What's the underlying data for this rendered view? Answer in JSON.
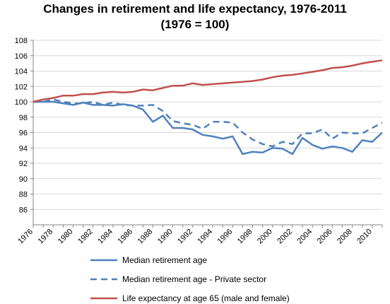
{
  "chart_data": {
    "type": "line",
    "title": "Changes in retirement and life expectancy, 1976-2011",
    "subtitle": "(1976 = 100)",
    "xlabel": "",
    "ylabel": "",
    "ylim": [
      84,
      108
    ],
    "yticks": [
      86,
      88,
      90,
      92,
      94,
      96,
      98,
      100,
      102,
      104,
      106,
      108
    ],
    "xlim": [
      1976,
      2011
    ],
    "xticks": [
      1976,
      1978,
      1980,
      1982,
      1984,
      1986,
      1988,
      1990,
      1992,
      1994,
      1996,
      1998,
      2000,
      2002,
      2004,
      2006,
      2008,
      2010
    ],
    "grid": "horizontal",
    "legend": "bottom",
    "x": [
      1976,
      1977,
      1978,
      1979,
      1980,
      1981,
      1982,
      1983,
      1984,
      1985,
      1986,
      1987,
      1988,
      1989,
      1990,
      1991,
      1992,
      1993,
      1994,
      1995,
      1996,
      1997,
      1998,
      1999,
      2000,
      2001,
      2002,
      2003,
      2004,
      2005,
      2006,
      2007,
      2008,
      2009,
      2010,
      2011
    ],
    "series": [
      {
        "name": "Median retirement age",
        "color": "#4f81bd",
        "style": "solid",
        "values": [
          100.0,
          100.0,
          100.0,
          99.8,
          99.6,
          99.9,
          99.6,
          99.6,
          99.5,
          99.7,
          99.5,
          99.0,
          97.4,
          98.2,
          96.6,
          96.6,
          96.4,
          95.7,
          95.5,
          95.2,
          95.5,
          93.2,
          93.5,
          93.4,
          94.0,
          93.9,
          93.2,
          95.3,
          94.4,
          93.9,
          94.2,
          94.0,
          93.5,
          95.0,
          94.8,
          96.0
        ]
      },
      {
        "name": "Median retirement age - Private sector",
        "color": "#4f81bd",
        "style": "dashed",
        "values": [
          100.0,
          100.0,
          100.3,
          100.0,
          99.8,
          99.8,
          100.0,
          99.6,
          99.9,
          99.6,
          99.5,
          99.5,
          99.6,
          98.8,
          97.5,
          97.2,
          97.0,
          96.5,
          97.4,
          97.4,
          97.3,
          96.0,
          95.1,
          94.5,
          94.2,
          94.8,
          94.5,
          95.9,
          95.9,
          96.4,
          95.2,
          96.0,
          95.9,
          95.9,
          96.6,
          97.3
        ]
      },
      {
        "name": "Life expectancy at age 65 (male and female)",
        "color": "#c0504d",
        "style": "solid",
        "values": [
          100.0,
          100.3,
          100.5,
          100.8,
          100.8,
          101.0,
          101.0,
          101.2,
          101.3,
          101.2,
          101.3,
          101.6,
          101.5,
          101.8,
          102.1,
          102.1,
          102.4,
          102.2,
          102.3,
          102.4,
          102.5,
          102.6,
          102.7,
          102.9,
          103.2,
          103.4,
          103.5,
          103.7,
          103.9,
          104.1,
          104.4,
          104.5,
          104.7,
          105.0,
          105.2,
          105.4
        ]
      }
    ]
  }
}
